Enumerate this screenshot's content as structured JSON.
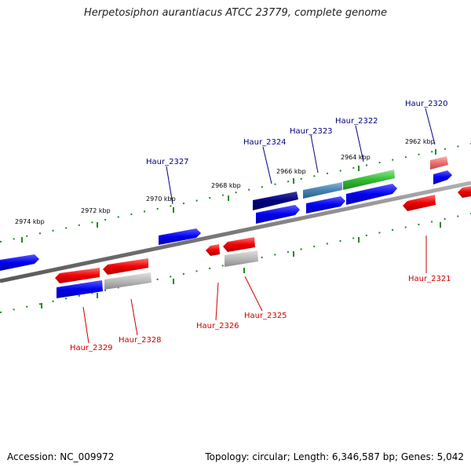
{
  "title": "Herpetosiphon aurantiacus ATCC 23779, complete genome",
  "footer": {
    "accession": "Accession: NC_009972",
    "stats": "Topology: circular; Length: 6,346,587 bp; Genes: 5,042"
  },
  "colors": {
    "backbone": "#8a8a8a",
    "tick": "#1f8a1f",
    "forward_gene": "#0000ff",
    "reverse_gene": "#ff0000",
    "forward_label": "#000080",
    "reverse_label": "#cc0000"
  },
  "scale_labels": [
    "2962 kbp",
    "2964 kbp",
    "2966 kbp",
    "2968 kbp",
    "2970 kbp",
    "2972 kbp",
    "2974 kbp"
  ],
  "gene_labels": {
    "forward": [
      "Haur_2320",
      "Haur_2322",
      "Haur_2323",
      "Haur_2324",
      "Haur_2327"
    ],
    "reverse": [
      "Haur_2321",
      "Haur_2325",
      "Haur_2326",
      "Haur_2328",
      "Haur_2329"
    ]
  }
}
